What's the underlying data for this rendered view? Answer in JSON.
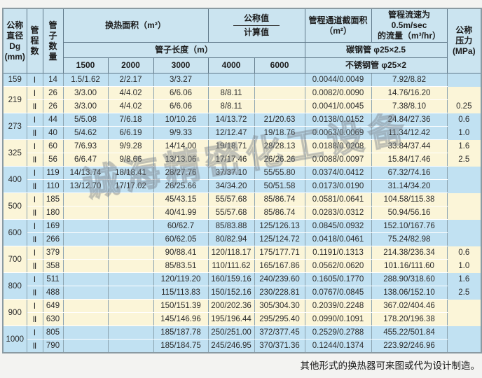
{
  "table": {
    "header": {
      "diameter": "公称\n直径\nDg\n(mm)",
      "passes": "管\n程\n数",
      "tubes": "管\n子\n数\n量",
      "area_title": "换热面积（m²）",
      "nominal_label": "公称值",
      "calc_label": "计算值",
      "tube_length": "管子长度（m）",
      "lengths": [
        "1500",
        "2000",
        "3000",
        "4000",
        "6000"
      ],
      "cross_section": "管程通道截面积\n（m²）",
      "flow": "管程流速为0.5m/sec\n的流量（m³/hr）",
      "carbon_steel": "碳钢管 φ25×2.5",
      "stainless_steel": "不锈钢管 φ25×2",
      "pressure": "公称\n压力\n(MPa)"
    },
    "rows": [
      {
        "dg": "159",
        "dg_span": 1,
        "band": "blue",
        "pass": "Ⅰ",
        "tubes": "14",
        "values": [
          "1.5/1.62",
          "2/2.17",
          "3/3.27",
          "",
          "",
          "0.0044/0.0049",
          "7.92/8.82"
        ],
        "pressure": ""
      },
      {
        "dg": "219",
        "dg_span": 2,
        "band": "cream",
        "pass": "Ⅰ",
        "tubes": "26",
        "values": [
          "3/3.00",
          "4/4.02",
          "6/6.06",
          "8/8.11",
          "",
          "0.0082/0.0090",
          "14.76/16.20"
        ],
        "pressure": ""
      },
      {
        "band": "cream",
        "pass": "Ⅱ",
        "tubes": "26",
        "values": [
          "3/3.00",
          "4/4.02",
          "6/6.06",
          "8/8.11",
          "",
          "0.0041/0.0045",
          "7.38/8.10"
        ],
        "pressure": "0.25"
      },
      {
        "dg": "273",
        "dg_span": 2,
        "band": "blue",
        "pass": "Ⅰ",
        "tubes": "44",
        "values": [
          "5/5.08",
          "7/6.18",
          "10/10.26",
          "14/13.72",
          "21/20.63",
          "0.0138/0.0152",
          "24.84/27.36"
        ],
        "pressure": "0.6"
      },
      {
        "band": "blue",
        "pass": "Ⅱ",
        "tubes": "40",
        "values": [
          "5/4.62",
          "6/6.19",
          "9/9.33",
          "12/12.47",
          "19/18.76",
          "0.0063/0.0069",
          "11.34/12.42"
        ],
        "pressure": "1.0"
      },
      {
        "dg": "325",
        "dg_span": 2,
        "band": "cream",
        "pass": "Ⅰ",
        "tubes": "60",
        "values": [
          "7/6.93",
          "9/9.28",
          "14/14.00",
          "19/18.71",
          "28/28.13",
          "0.0188/0.0208",
          "33.84/37.44"
        ],
        "pressure": "1.6"
      },
      {
        "band": "cream",
        "pass": "Ⅱ",
        "tubes": "56",
        "values": [
          "6/6.47",
          "9/8.66",
          "13/13.06",
          "17/17.46",
          "26/26.26",
          "0.0088/0.0097",
          "15.84/17.46"
        ],
        "pressure": "2.5"
      },
      {
        "dg": "400",
        "dg_span": 2,
        "band": "blue",
        "pass": "Ⅰ",
        "tubes": "119",
        "values": [
          "14/13.74",
          "18/18.41",
          "28/27.76",
          "37/37.10",
          "55/55.80",
          "0.0374/0.0412",
          "67.32/74.16"
        ],
        "pressure": ""
      },
      {
        "band": "blue",
        "pass": "Ⅱ",
        "tubes": "110",
        "values": [
          "13/12.70",
          "17/17.02",
          "26/25.66",
          "34/34.20",
          "50/51.58",
          "0.0173/0.0190",
          "31.14/34.20"
        ],
        "pressure": ""
      },
      {
        "dg": "500",
        "dg_span": 2,
        "band": "cream",
        "pass": "Ⅰ",
        "tubes": "185",
        "values": [
          "",
          "",
          "45/43.15",
          "55/57.68",
          "85/86.74",
          "0.0581/0.0641",
          "104.58/115.38"
        ],
        "pressure": ""
      },
      {
        "band": "cream",
        "pass": "Ⅱ",
        "tubes": "180",
        "values": [
          "",
          "",
          "40/41.99",
          "55/57.68",
          "85/86.74",
          "0.0283/0.0312",
          "50.94/56.16"
        ],
        "pressure": ""
      },
      {
        "dg": "600",
        "dg_span": 2,
        "band": "blue",
        "pass": "Ⅰ",
        "tubes": "169",
        "values": [
          "",
          "",
          "60/62.7",
          "85/83.88",
          "125/126.13",
          "0.0845/0.0932",
          "152.10/167.76"
        ],
        "pressure": ""
      },
      {
        "band": "blue",
        "pass": "Ⅱ",
        "tubes": "266",
        "values": [
          "",
          "",
          "60/62.05",
          "80/82.94",
          "125/124.72",
          "0.0418/0.0461",
          "75.24/82.98"
        ],
        "pressure": ""
      },
      {
        "dg": "700",
        "dg_span": 2,
        "band": "cream",
        "pass": "Ⅰ",
        "tubes": "379",
        "values": [
          "",
          "",
          "90/88.41",
          "120/118.17",
          "175/177.71",
          "0.1191/0.1313",
          "214.38/236.34"
        ],
        "pressure": "0.6"
      },
      {
        "band": "cream",
        "pass": "Ⅱ",
        "tubes": "358",
        "values": [
          "",
          "",
          "85/83.51",
          "110/111.62",
          "165/167.86",
          "0.0562/0.0620",
          "101.16/111.60"
        ],
        "pressure": "1.0"
      },
      {
        "dg": "800",
        "dg_span": 2,
        "band": "blue",
        "pass": "Ⅰ",
        "tubes": "511",
        "values": [
          "",
          "",
          "120/119.20",
          "160/159.16",
          "240/239.60",
          "0.1605/0.1770",
          "288.90/318.60"
        ],
        "pressure": "1.6"
      },
      {
        "band": "blue",
        "pass": "Ⅱ",
        "tubes": "488",
        "values": [
          "",
          "",
          "115/113.83",
          "150/152.16",
          "230/228.81",
          "0.0767/0.0845",
          "138.06/152.10"
        ],
        "pressure": "2.5"
      },
      {
        "dg": "900",
        "dg_span": 2,
        "band": "cream",
        "pass": "Ⅰ",
        "tubes": "649",
        "values": [
          "",
          "",
          "150/151.39",
          "200/202.36",
          "305/304.30",
          "0.2039/0.2248",
          "367.02/404.46"
        ],
        "pressure": ""
      },
      {
        "band": "cream",
        "pass": "Ⅱ",
        "tubes": "630",
        "values": [
          "",
          "",
          "145/146.96",
          "195/196.44",
          "295/295.40",
          "0.0990/0.1091",
          "178.20/196.38"
        ],
        "pressure": ""
      },
      {
        "dg": "1000",
        "dg_span": 2,
        "band": "blue",
        "pass": "Ⅰ",
        "tubes": "805",
        "values": [
          "",
          "",
          "185/187.78",
          "250/251.00",
          "372/377.45",
          "0.2529/0.2788",
          "455.22/501.84"
        ],
        "pressure": ""
      },
      {
        "band": "blue",
        "pass": "Ⅱ",
        "tubes": "790",
        "values": [
          "",
          "",
          "185/184.75",
          "245/246.95",
          "370/371.36",
          "0.1244/0.1374",
          "223.92/246.96"
        ],
        "pressure": ""
      }
    ]
  },
  "watermark": {
    "text": "诚海精密化工设备"
  },
  "footer": {
    "note": "其他形式的换热器可来图或代为设计制造。"
  }
}
